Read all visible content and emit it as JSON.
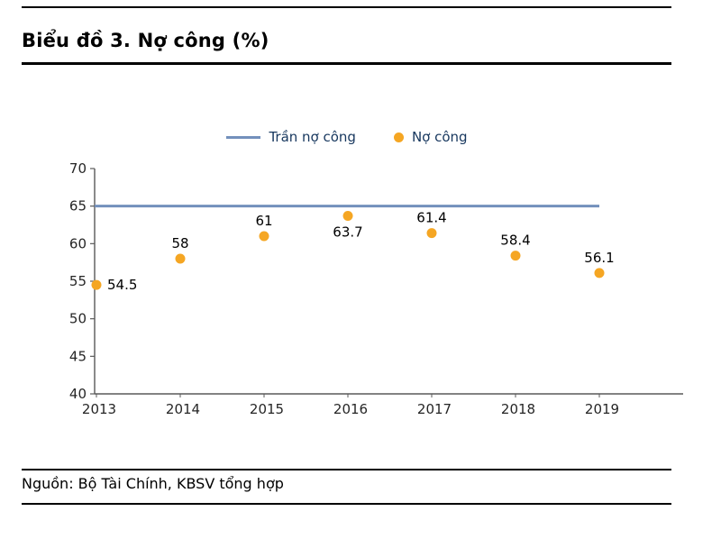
{
  "header": {
    "title": "Biểu đồ 3. Nợ công (%)"
  },
  "footer": {
    "source": "Nguồn: Bộ Tài Chính, KBSV tổng hợp"
  },
  "chart_data": {
    "type": "scatter",
    "title": "Biểu đồ 3. Nợ công (%)",
    "categories": [
      "2013",
      "2014",
      "2015",
      "2016",
      "2017",
      "2018",
      "2019"
    ],
    "series": [
      {
        "name": "Trần nợ công",
        "type": "hline",
        "value": 65,
        "color": "#7390BC"
      },
      {
        "name": "Nợ công",
        "type": "points",
        "values": [
          54.5,
          58,
          61,
          63.7,
          61.4,
          58.4,
          56.1
        ],
        "labels": [
          "54.5",
          "58",
          "61",
          "63.7",
          "61.4",
          "58.4",
          "56.1"
        ],
        "label_positions": [
          "right",
          "above",
          "above",
          "below",
          "above",
          "above",
          "above"
        ],
        "color": "#F5A623"
      }
    ],
    "ylim": [
      40,
      70
    ],
    "yticks": [
      40,
      45,
      50,
      55,
      60,
      65,
      70
    ],
    "xlabel": "",
    "ylabel": "",
    "grid": false,
    "legend_position": "top-center",
    "axis_color": "#595959",
    "tick_label_color": "#262626",
    "data_label_color": "#000000"
  }
}
